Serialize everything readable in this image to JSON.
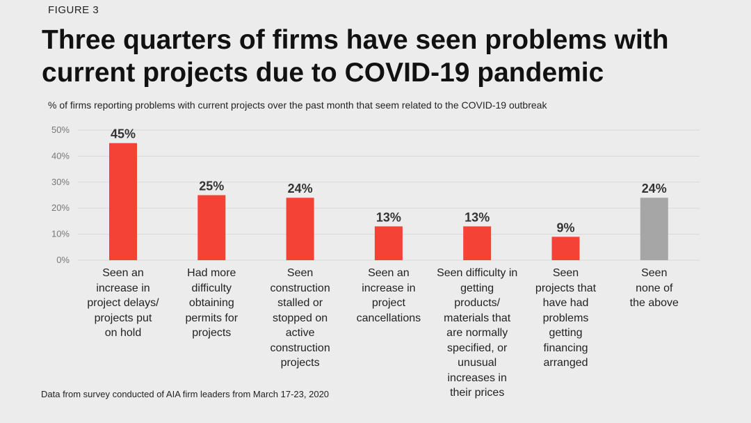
{
  "figure_label": "FIGURE 3",
  "title": "Three quarters of firms have seen problems with current projects due to COVID-19 pandemic",
  "subtitle": "% of firms reporting problems with current projects over the past month that seem related to the COVID-19 outbreak",
  "source": "Data from survey conducted of AIA firm leaders from March 17-23, 2020",
  "colors": {
    "primary": "#f44336",
    "neutral": "#a6a6a6",
    "grid": "#d9d9d9"
  },
  "chart_data": {
    "type": "bar",
    "title": "Three quarters of firms have seen problems with current projects due to COVID-19 pandemic",
    "subtitle": "% of firms reporting problems with current projects over the past month that seem related to the COVID-19 outbreak",
    "xlabel": "",
    "ylabel": "",
    "ylim": [
      0,
      50
    ],
    "yticks": [
      "0%",
      "10%",
      "20%",
      "30%",
      "40%",
      "50%"
    ],
    "grid": true,
    "categories": [
      "Seen an increase in project delays/ projects put on hold",
      "Had more difficulty obtaining permits for projects",
      "Seen construction stalled or stopped on active construction projects",
      "Seen an increase in project cancellations",
      "Seen difficulty in getting products/ materials that are normally specified, or unusual increases in their prices",
      "Seen projects that have had problems getting financing arranged",
      "Seen none of the above"
    ],
    "category_lines": [
      [
        "Seen an",
        "increase in",
        "project delays/",
        "projects put",
        "on hold"
      ],
      [
        "Had more",
        "difficulty",
        "obtaining",
        "permits for",
        "projects"
      ],
      [
        "Seen",
        "construction",
        "stalled or",
        "stopped on",
        "active",
        "construction",
        "projects"
      ],
      [
        "Seen an",
        "increase in",
        "project",
        "cancellations"
      ],
      [
        "Seen difficulty in",
        "getting",
        "products/",
        "materials that",
        "are normally",
        "specified, or",
        "unusual",
        "increases in",
        "their prices"
      ],
      [
        "Seen",
        "projects that",
        "have had",
        "problems",
        "getting",
        "financing",
        "arranged"
      ],
      [
        "Seen",
        "none of",
        "the above"
      ]
    ],
    "values": [
      45,
      25,
      24,
      13,
      13,
      9,
      24
    ],
    "value_labels": [
      "45%",
      "25%",
      "24%",
      "13%",
      "13%",
      "9%",
      "24%"
    ],
    "bar_colors": [
      "#f44336",
      "#f44336",
      "#f44336",
      "#f44336",
      "#f44336",
      "#f44336",
      "#a6a6a6"
    ]
  }
}
